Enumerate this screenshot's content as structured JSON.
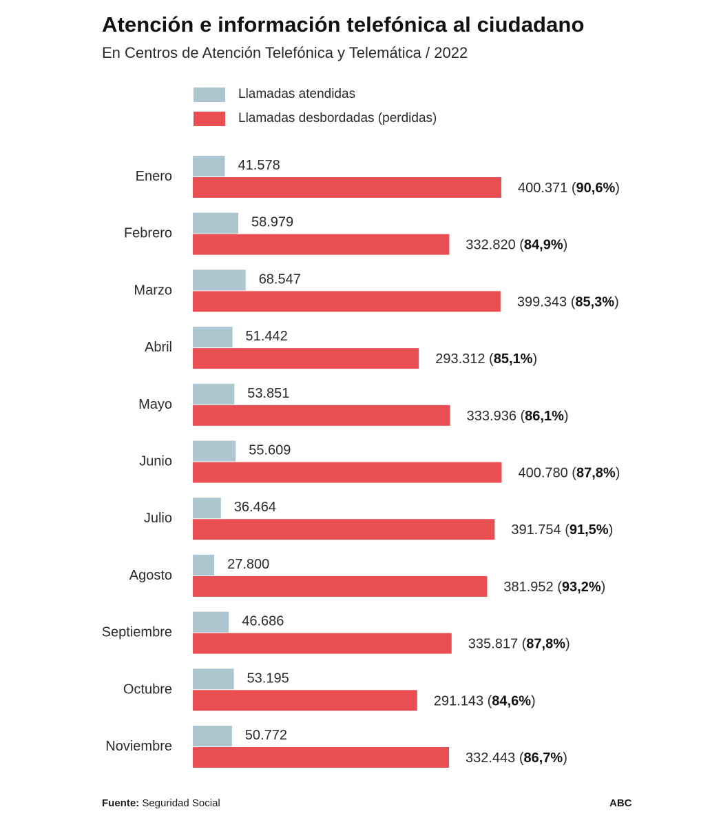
{
  "header": {
    "title": "Atención e información telefónica al ciudadano",
    "subtitle": "En Centros de Atención Telefónica y Telemática / 2022"
  },
  "legend": {
    "attended_label": "Llamadas atendidas",
    "overflow_label": "Llamadas desbordadas (perdidas)"
  },
  "colors": {
    "attended": "#adc5cf",
    "overflow": "#e94f52"
  },
  "footer": {
    "source_prefix": "Fuente:",
    "source_text": " Seguridad Social",
    "brand": "ABC"
  },
  "chart_data": {
    "type": "bar",
    "orientation": "horizontal",
    "grid": false,
    "legend_position": "top-left",
    "xlim": [
      0,
      410000
    ],
    "categories": [
      "Enero",
      "Febrero",
      "Marzo",
      "Abril",
      "Mayo",
      "Junio",
      "Julio",
      "Agosto",
      "Septiembre",
      "Octubre",
      "Noviembre"
    ],
    "series": [
      {
        "name": "Llamadas atendidas",
        "values": [
          41578,
          58979,
          68547,
          51442,
          53851,
          55609,
          36464,
          27800,
          46686,
          53195,
          50772
        ],
        "labels": [
          "41.578",
          "58.979",
          "68.547",
          "51.442",
          "53.851",
          "55.609",
          "36.464",
          "27.800",
          "46.686",
          "53.195",
          "50.772"
        ]
      },
      {
        "name": "Llamadas desbordadas (perdidas)",
        "values": [
          400371,
          332820,
          399343,
          293312,
          333936,
          400780,
          391754,
          381952,
          335817,
          291143,
          332443
        ],
        "labels": [
          "400.371",
          "332.820",
          "399.343",
          "293.312",
          "333.936",
          "400.780",
          "391.754",
          "381.952",
          "335.817",
          "291.143",
          "332.443"
        ],
        "percent_labels": [
          "90,6%",
          "84,9%",
          "85,3%",
          "85,1%",
          "86,1%",
          "87,8%",
          "91,5%",
          "93,2%",
          "87,8%",
          "84,6%",
          "86,7%"
        ]
      }
    ]
  }
}
